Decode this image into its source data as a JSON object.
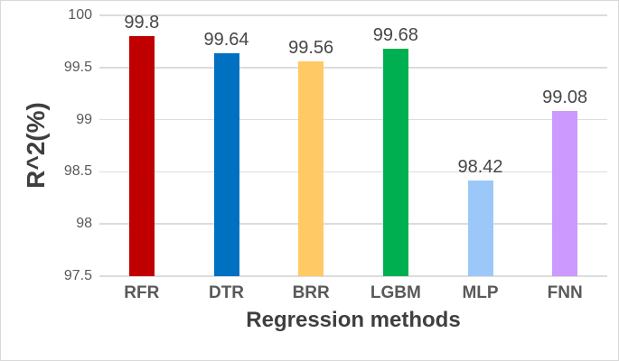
{
  "chart_data": {
    "type": "bar",
    "categories": [
      "RFR",
      "DTR",
      "BRR",
      "LGBM",
      "MLP",
      "FNN"
    ],
    "values": [
      99.8,
      99.64,
      99.56,
      99.68,
      98.42,
      99.08
    ],
    "data_labels": [
      "99.8",
      "99.64",
      "99.56",
      "99.68",
      "98.42",
      "99.08"
    ],
    "bar_colors": [
      "#c00000",
      "#0070c0",
      "#ffc966",
      "#00b050",
      "#9bc8f9",
      "#cc99ff"
    ],
    "xlabel": "Regression methods",
    "ylabel": "R^2(%)",
    "ylim": [
      97.5,
      100
    ],
    "yticks": [
      100,
      99.5,
      99,
      98.5,
      98,
      97.5
    ],
    "ytick_labels": [
      "100",
      "99.5",
      "99",
      "98.5",
      "98",
      "97.5"
    ],
    "grid": true,
    "legend_position": "none",
    "colors": {
      "background": "#ffffff",
      "frame_border": "#d9d9d9",
      "gridline": "#dcdcdc",
      "tick_text": "#595959",
      "data_label_text": "#474747",
      "category_text": "#595959",
      "axis_title_text": "#3f3f3f"
    }
  }
}
